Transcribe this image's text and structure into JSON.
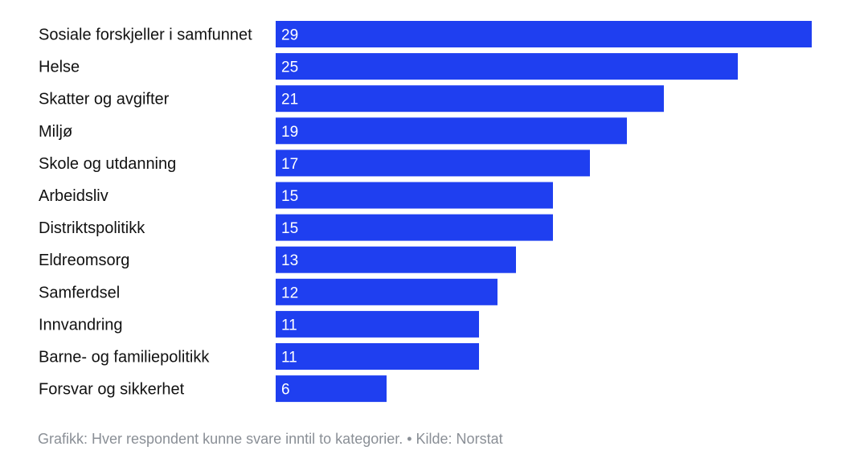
{
  "chart_data": {
    "type": "bar",
    "orientation": "horizontal",
    "categories": [
      "Sosiale forskjeller i samfunnet",
      "Helse",
      "Skatter og avgifter",
      "Miljø",
      "Skole og utdanning",
      "Arbeidsliv",
      "Distriktspolitikk",
      "Eldreomsorg",
      "Samferdsel",
      "Innvandring",
      "Barne- og familiepolitikk",
      "Forsvar og sikkerhet"
    ],
    "values": [
      29,
      25,
      21,
      19,
      17,
      15,
      15,
      13,
      12,
      11,
      11,
      6
    ],
    "xlim": [
      0,
      29
    ],
    "grid": false,
    "bar_color": "#1f3ff0",
    "value_label_color": "#ffffff"
  },
  "footnote": "Grafikk: Hver respondent kunne svare inntil to kategorier. • Kilde: Norstat",
  "colors": {
    "label_text": "#111111",
    "footnote_text": "#8a8f96",
    "background": "#ffffff"
  }
}
